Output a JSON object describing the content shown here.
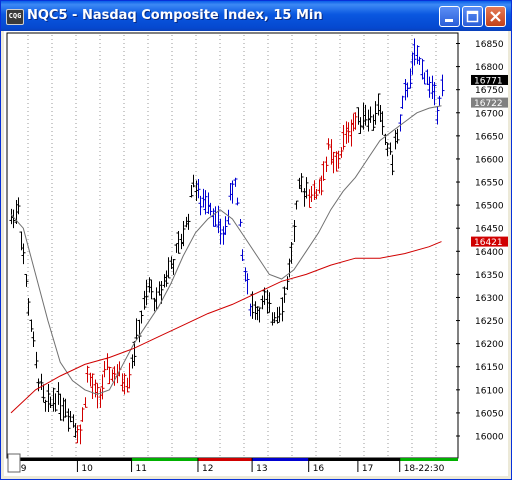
{
  "window": {
    "title": "NQC5 - Nasdaq Composite Index, 15 Min",
    "app_icon_text": "CQG",
    "controls": [
      "minimize",
      "maximize",
      "close"
    ]
  },
  "chart_data": {
    "type": "bar",
    "symbol": "NQC5",
    "title": "Nasdaq Composite Index, 15 Min",
    "y_axis": {
      "ticks": [
        16000,
        16050,
        16100,
        16150,
        16200,
        16250,
        16300,
        16350,
        16400,
        16450,
        16500,
        16550,
        16600,
        16650,
        16700,
        16750,
        16800,
        16850
      ],
      "tick_labels": [
        "16000",
        "16050",
        "16100",
        "16150",
        "16200",
        "16250",
        "16300",
        "16350",
        "16400",
        "16450",
        "16500",
        "16550",
        "16600",
        "16650",
        "16700",
        "16750",
        "16800",
        "16850"
      ],
      "range": [
        15960,
        16875
      ],
      "position": "right"
    },
    "x_axis": {
      "labels": [
        "09",
        "10",
        "11",
        "12",
        "13",
        "16",
        "17",
        "18-22:30"
      ],
      "session_colors": [
        "#000000",
        "#000000",
        "#00b000",
        "#d00000",
        "#0000d0",
        "#000000",
        "#000000",
        "#00b000"
      ]
    },
    "markers": [
      {
        "label": "16771",
        "value": 16771,
        "color": "#000000"
      },
      {
        "label": "16722",
        "value": 16722,
        "color": "#808080"
      },
      {
        "label": "16421",
        "value": 16421,
        "color": "#d00000"
      }
    ],
    "grid": "dotted-vertical",
    "price_path": [
      [
        0,
        16470
      ],
      [
        3,
        16500
      ],
      [
        6,
        16330
      ],
      [
        10,
        16150
      ],
      [
        14,
        16060
      ],
      [
        18,
        16090
      ],
      [
        22,
        16060
      ],
      [
        26,
        16030
      ],
      [
        28,
        16000
      ],
      [
        31,
        16130
      ],
      [
        35,
        16080
      ],
      [
        39,
        16140
      ],
      [
        43,
        16130
      ],
      [
        47,
        16120
      ],
      [
        50,
        16190
      ],
      [
        53,
        16260
      ],
      [
        56,
        16320
      ],
      [
        59,
        16290
      ],
      [
        62,
        16340
      ],
      [
        66,
        16380
      ],
      [
        69,
        16420
      ],
      [
        72,
        16480
      ],
      [
        74,
        16560
      ],
      [
        77,
        16500
      ],
      [
        80,
        16520
      ],
      [
        83,
        16470
      ],
      [
        86,
        16430
      ],
      [
        89,
        16510
      ],
      [
        91,
        16560
      ],
      [
        94,
        16390
      ],
      [
        97,
        16290
      ],
      [
        100,
        16270
      ],
      [
        103,
        16290
      ],
      [
        106,
        16260
      ],
      [
        109,
        16280
      ],
      [
        111,
        16300
      ],
      [
        114,
        16400
      ],
      [
        117,
        16530
      ],
      [
        120,
        16540
      ],
      [
        123,
        16520
      ],
      [
        126,
        16550
      ],
      [
        129,
        16620
      ],
      [
        132,
        16580
      ],
      [
        135,
        16640
      ],
      [
        138,
        16670
      ],
      [
        141,
        16690
      ],
      [
        144,
        16700
      ],
      [
        147,
        16680
      ],
      [
        149,
        16720
      ],
      [
        152,
        16640
      ],
      [
        155,
        16600
      ],
      [
        158,
        16680
      ],
      [
        161,
        16760
      ],
      [
        164,
        16820
      ],
      [
        167,
        16800
      ],
      [
        170,
        16760
      ],
      [
        173,
        16720
      ],
      [
        175,
        16760
      ]
    ],
    "session_bounds": [
      0,
      27,
      49,
      76,
      98,
      121,
      141,
      158,
      176
    ],
    "session_bar_colors": [
      "#000000",
      "#d00000",
      "#000000",
      "#0000d0",
      "#000000",
      "#d00000",
      "#000000",
      "#0000d0"
    ],
    "ma_fast": [
      [
        0,
        16480
      ],
      [
        5,
        16450
      ],
      [
        10,
        16350
      ],
      [
        15,
        16250
      ],
      [
        20,
        16160
      ],
      [
        25,
        16120
      ],
      [
        30,
        16100
      ],
      [
        35,
        16090
      ],
      [
        40,
        16100
      ],
      [
        45,
        16150
      ],
      [
        50,
        16200
      ],
      [
        55,
        16240
      ],
      [
        60,
        16280
      ],
      [
        65,
        16330
      ],
      [
        70,
        16390
      ],
      [
        75,
        16440
      ],
      [
        80,
        16470
      ],
      [
        85,
        16490
      ],
      [
        90,
        16470
      ],
      [
        95,
        16430
      ],
      [
        100,
        16390
      ],
      [
        105,
        16350
      ],
      [
        110,
        16340
      ],
      [
        115,
        16360
      ],
      [
        120,
        16400
      ],
      [
        125,
        16440
      ],
      [
        130,
        16490
      ],
      [
        135,
        16530
      ],
      [
        140,
        16560
      ],
      [
        145,
        16600
      ],
      [
        150,
        16640
      ],
      [
        155,
        16660
      ],
      [
        160,
        16680
      ],
      [
        165,
        16700
      ],
      [
        170,
        16710
      ],
      [
        175,
        16715
      ]
    ],
    "ma_slow": [
      [
        0,
        16050
      ],
      [
        10,
        16100
      ],
      [
        20,
        16130
      ],
      [
        30,
        16155
      ],
      [
        40,
        16170
      ],
      [
        50,
        16190
      ],
      [
        60,
        16215
      ],
      [
        70,
        16240
      ],
      [
        80,
        16265
      ],
      [
        90,
        16285
      ],
      [
        100,
        16310
      ],
      [
        110,
        16335
      ],
      [
        120,
        16350
      ],
      [
        130,
        16370
      ],
      [
        140,
        16385
      ],
      [
        150,
        16385
      ],
      [
        160,
        16395
      ],
      [
        170,
        16410
      ],
      [
        175,
        16421
      ]
    ]
  }
}
